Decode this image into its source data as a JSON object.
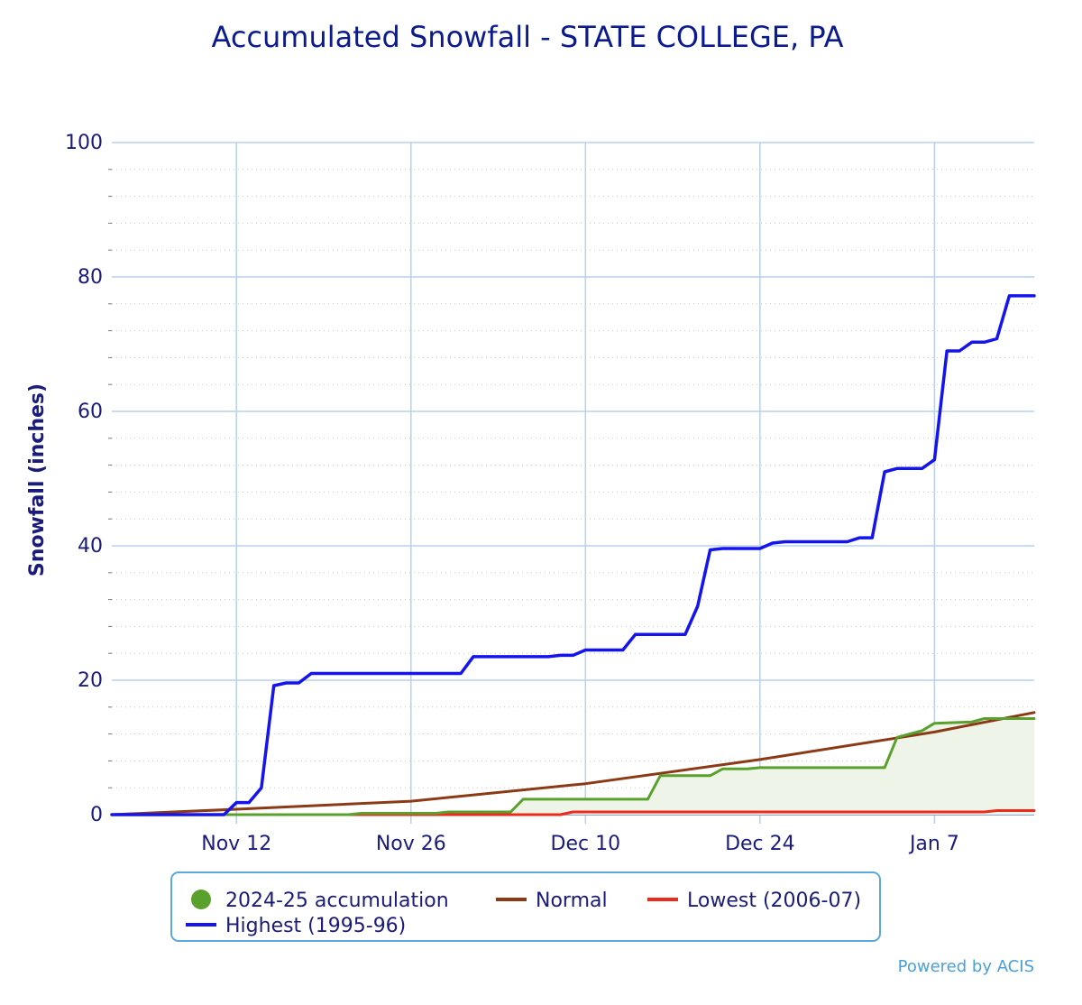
{
  "chart_data": {
    "type": "line",
    "title": "Accumulated Snowfall - STATE COLLEGE, PA",
    "ylabel": "Snowfall (inches)",
    "ylim": [
      0,
      100
    ],
    "yticks": [
      "0",
      "20",
      "40",
      "60",
      "80",
      "100"
    ],
    "xticks": [
      "Nov 12",
      "Nov 26",
      "Dec 10",
      "Dec 24",
      "Jan 7"
    ],
    "grid": true,
    "legend_position": "bottom",
    "credits": "Powered by ACIS",
    "colors": {
      "accumulation": "#5aa02c",
      "accumulation_fill": "#eef5e8",
      "normal": "#8b3a16",
      "lowest": "#ee2a1c",
      "highest": "#1414ee",
      "grid_major": "#b8d0ea",
      "axis_text": "#1b1b7a"
    },
    "series": [
      {
        "name": "2024-25 accumulation",
        "key": "accumulation",
        "points": [
          [
            "Nov 2",
            0
          ],
          [
            "Nov 21",
            0
          ],
          [
            "Nov 22",
            0.2
          ],
          [
            "Nov 28",
            0.2
          ],
          [
            "Nov 29",
            0.4
          ],
          [
            "Dec 4",
            0.4
          ],
          [
            "Dec 5",
            2.3
          ],
          [
            "Dec 15",
            2.3
          ],
          [
            "Dec 16",
            5.8
          ],
          [
            "Dec 20",
            5.8
          ],
          [
            "Dec 21",
            6.8
          ],
          [
            "Dec 23",
            6.8
          ],
          [
            "Dec 24",
            7.0
          ],
          [
            "Jan 3",
            7.0
          ],
          [
            "Jan 4",
            11.5
          ],
          [
            "Jan 6",
            12.5
          ],
          [
            "Jan 7",
            13.6
          ],
          [
            "Jan 10",
            13.8
          ],
          [
            "Jan 11",
            14.3
          ],
          [
            "Jan 13",
            14.3
          ],
          [
            "Jan 15",
            14.3
          ]
        ]
      },
      {
        "name": "Normal",
        "key": "normal",
        "points": [
          [
            "Nov 2",
            0
          ],
          [
            "Nov 12",
            0.8
          ],
          [
            "Nov 26",
            2.0
          ],
          [
            "Dec 10",
            4.6
          ],
          [
            "Dec 24",
            8.2
          ],
          [
            "Jan 7",
            12.3
          ],
          [
            "Jan 15",
            15.2
          ]
        ]
      },
      {
        "name": "Lowest (2006-07)",
        "key": "lowest",
        "points": [
          [
            "Nov 2",
            0
          ],
          [
            "Dec 8",
            0
          ],
          [
            "Dec 9",
            0.4
          ],
          [
            "Jan 11",
            0.4
          ],
          [
            "Jan 12",
            0.6
          ],
          [
            "Jan 15",
            0.6
          ]
        ]
      },
      {
        "name": "Highest (1995-96)",
        "key": "highest",
        "points": [
          [
            "Nov 2",
            0
          ],
          [
            "Nov 11",
            0
          ],
          [
            "Nov 12",
            1.8
          ],
          [
            "Nov 13",
            1.8
          ],
          [
            "Nov 14",
            4
          ],
          [
            "Nov 15",
            19.2
          ],
          [
            "Nov 16",
            19.6
          ],
          [
            "Nov 17",
            19.6
          ],
          [
            "Nov 18",
            21
          ],
          [
            "Nov 30",
            21
          ],
          [
            "Dec 1",
            23.5
          ],
          [
            "Dec 7",
            23.5
          ],
          [
            "Dec 8",
            23.7
          ],
          [
            "Dec 9",
            23.7
          ],
          [
            "Dec 10",
            24.5
          ],
          [
            "Dec 13",
            24.5
          ],
          [
            "Dec 14",
            26.8
          ],
          [
            "Dec 18",
            26.8
          ],
          [
            "Dec 19",
            31
          ],
          [
            "Dec 20",
            39.4
          ],
          [
            "Dec 21",
            39.6
          ],
          [
            "Dec 24",
            39.6
          ],
          [
            "Dec 25",
            40.4
          ],
          [
            "Dec 26",
            40.6
          ],
          [
            "Dec 31",
            40.6
          ],
          [
            "Jan 1",
            41.2
          ],
          [
            "Jan 2",
            41.2
          ],
          [
            "Jan 3",
            51
          ],
          [
            "Jan 4",
            51.5
          ],
          [
            "Jan 6",
            51.5
          ],
          [
            "Jan 7",
            52.8
          ],
          [
            "Jan 8",
            69
          ],
          [
            "Jan 9",
            69
          ],
          [
            "Jan 10",
            70.3
          ],
          [
            "Jan 11",
            70.3
          ],
          [
            "Jan 12",
            70.8
          ],
          [
            "Jan 13",
            77.2
          ],
          [
            "Jan 15",
            77.2
          ]
        ]
      }
    ]
  }
}
